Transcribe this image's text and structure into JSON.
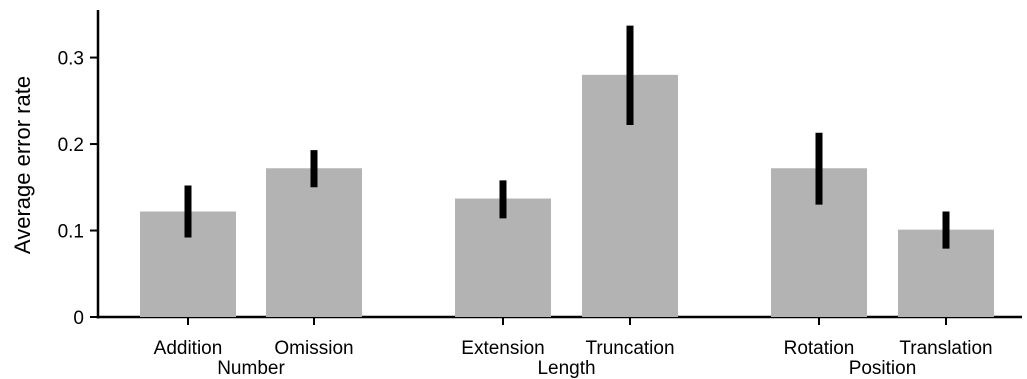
{
  "chart_data": {
    "type": "bar",
    "title": "",
    "xlabel": "",
    "ylabel": "Average error rate",
    "ylim": [
      0,
      0.355
    ],
    "yticks": [
      0,
      0.1,
      0.2,
      0.3
    ],
    "ytick_labels": [
      "0",
      "0.1",
      "0.2",
      "0.3"
    ],
    "grid": false,
    "legend": "none",
    "bar_color": "#b3b3b3",
    "error_color": "#000000",
    "groups": [
      {
        "label": "Number",
        "categories": [
          {
            "label": "Addition",
            "value": 0.122,
            "err_low": 0.092,
            "err_high": 0.152
          },
          {
            "label": "Omission",
            "value": 0.172,
            "err_low": 0.15,
            "err_high": 0.193
          }
        ]
      },
      {
        "label": "Length",
        "categories": [
          {
            "label": "Extension",
            "value": 0.137,
            "err_low": 0.114,
            "err_high": 0.158
          },
          {
            "label": "Truncation",
            "value": 0.28,
            "err_low": 0.222,
            "err_high": 0.337
          }
        ]
      },
      {
        "label": "Position",
        "categories": [
          {
            "label": "Rotation",
            "value": 0.172,
            "err_low": 0.13,
            "err_high": 0.213
          },
          {
            "label": "Translation",
            "value": 0.101,
            "err_low": 0.079,
            "err_high": 0.122
          }
        ]
      }
    ]
  }
}
